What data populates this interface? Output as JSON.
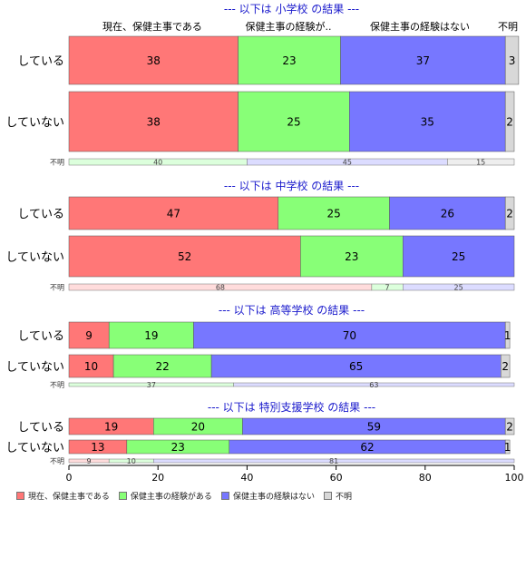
{
  "chart_data": {
    "type": "bar",
    "orientation": "horizontal-stacked-percent",
    "xlim": [
      0,
      100
    ],
    "xticks": [
      0,
      20,
      40,
      60,
      80,
      100
    ],
    "series_names": [
      "現在、保健主事である",
      "保健主事の経験がある",
      "保健主事の経験はない",
      "不明"
    ],
    "series_colors": [
      "#ff7777",
      "#88ff77",
      "#7777ff",
      "#d8d8d8"
    ],
    "header_labels": [
      "現在、保健主事である",
      "保健主事の経験が..",
      "保健主事の経験はない",
      "不明"
    ],
    "panels": [
      {
        "title": "--- 以下は 小学校 の結果 ---",
        "rows": [
          {
            "label": "している",
            "values": [
              38,
              23,
              37,
              3
            ]
          },
          {
            "label": "していない",
            "values": [
              38,
              25,
              35,
              2
            ]
          }
        ],
        "unknown": {
          "label": "不明",
          "values": [
            0,
            40,
            45,
            15
          ]
        }
      },
      {
        "title": "--- 以下は 中学校 の結果 ---",
        "rows": [
          {
            "label": "している",
            "values": [
              47,
              25,
              26,
              2
            ]
          },
          {
            "label": "していない",
            "values": [
              52,
              23,
              25,
              0
            ]
          }
        ],
        "unknown": {
          "label": "不明",
          "values": [
            68,
            7,
            25,
            0
          ]
        }
      },
      {
        "title": "--- 以下は 高等学校 の結果 ---",
        "rows": [
          {
            "label": "している",
            "values": [
              9,
              19,
              70,
              1
            ]
          },
          {
            "label": "していない",
            "values": [
              10,
              22,
              65,
              2
            ]
          }
        ],
        "unknown": {
          "label": "不明",
          "values": [
            0,
            37,
            63,
            0
          ]
        }
      },
      {
        "title": "--- 以下は 特別支援学校 の結果 ---",
        "rows": [
          {
            "label": "している",
            "values": [
              19,
              20,
              59,
              2
            ]
          },
          {
            "label": "していない",
            "values": [
              13,
              23,
              62,
              1
            ]
          }
        ],
        "unknown": {
          "label": "不明",
          "values": [
            9,
            10,
            81,
            0
          ]
        }
      }
    ]
  }
}
